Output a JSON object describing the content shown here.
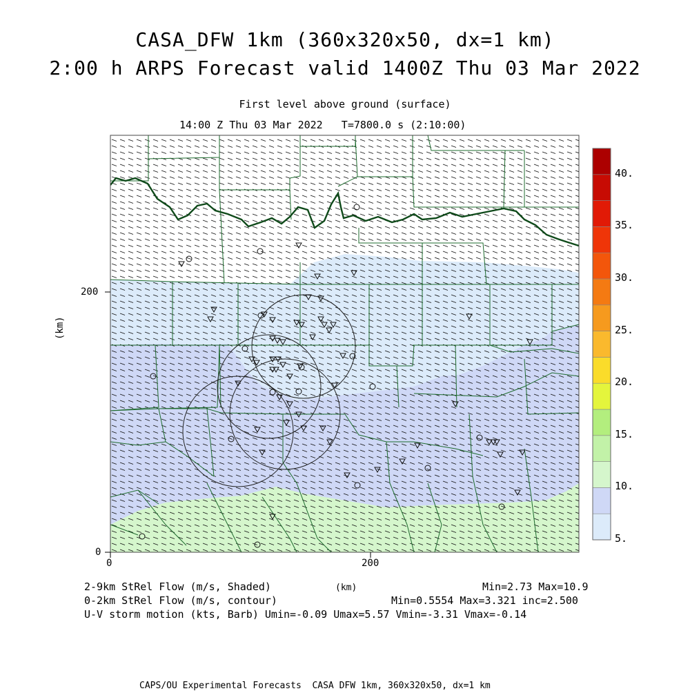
{
  "header": {
    "title_line1": "CASA_DFW 1km (360x320x50, dx=1 km)",
    "title_line2": "2:00 h ARPS Forecast valid 1400Z Thu 03 Mar 2022",
    "level": "First level above ground (surface)",
    "time": "14:00 Z Thu 03 Mar 2022   T=7800.0 s (2:10:00)"
  },
  "axes": {
    "x_ticks": [
      "0",
      "200"
    ],
    "y_ticks": [
      "0",
      "200"
    ],
    "x_unit": "(km)",
    "y_unit": "(km)",
    "x_range": [
      0,
      360
    ],
    "y_range": [
      0,
      320
    ]
  },
  "colorbar": {
    "labels": [
      "5.",
      "10.",
      "15.",
      "20.",
      "25.",
      "30.",
      "35.",
      "40."
    ],
    "bins": [
      "#dcebfa",
      "#cfd8f6",
      "#d5f6cc",
      "#c2f2a8",
      "#b3ee7e",
      "#e4f53c",
      "#fadc2a",
      "#fab92d",
      "#f69a1e",
      "#f47a12",
      "#f3560b",
      "#ef3508",
      "#e11a06",
      "#c70b03",
      "#ac0000"
    ]
  },
  "legend": {
    "line1_left": "2-9km StRel Flow (m/s, Shaded)",
    "line1_mid": "(km)",
    "line1_right": "Min=2.73 Max=10.9",
    "line2_left": "0-2km StRel Flow (m/s, contour)",
    "line2_right": "Min=0.5554 Max=3.321 inc=2.500",
    "line3": "U-V storm motion (kts, Barb) Umin=-0.09 Umax=5.57 Vmin=-3.31 Vmax=-0.14"
  },
  "footer": "CAPS/OU Experimental Forecasts  CASA DFW 1km, 360x320x50, dx=1 km",
  "colors": {
    "shade_light_blue": "#dcebfa",
    "shade_lavender": "#cfd8f6",
    "shade_light_green": "#d5f6cc",
    "county_lines": "#1e6b2e",
    "river": "#0f4a1a"
  }
}
